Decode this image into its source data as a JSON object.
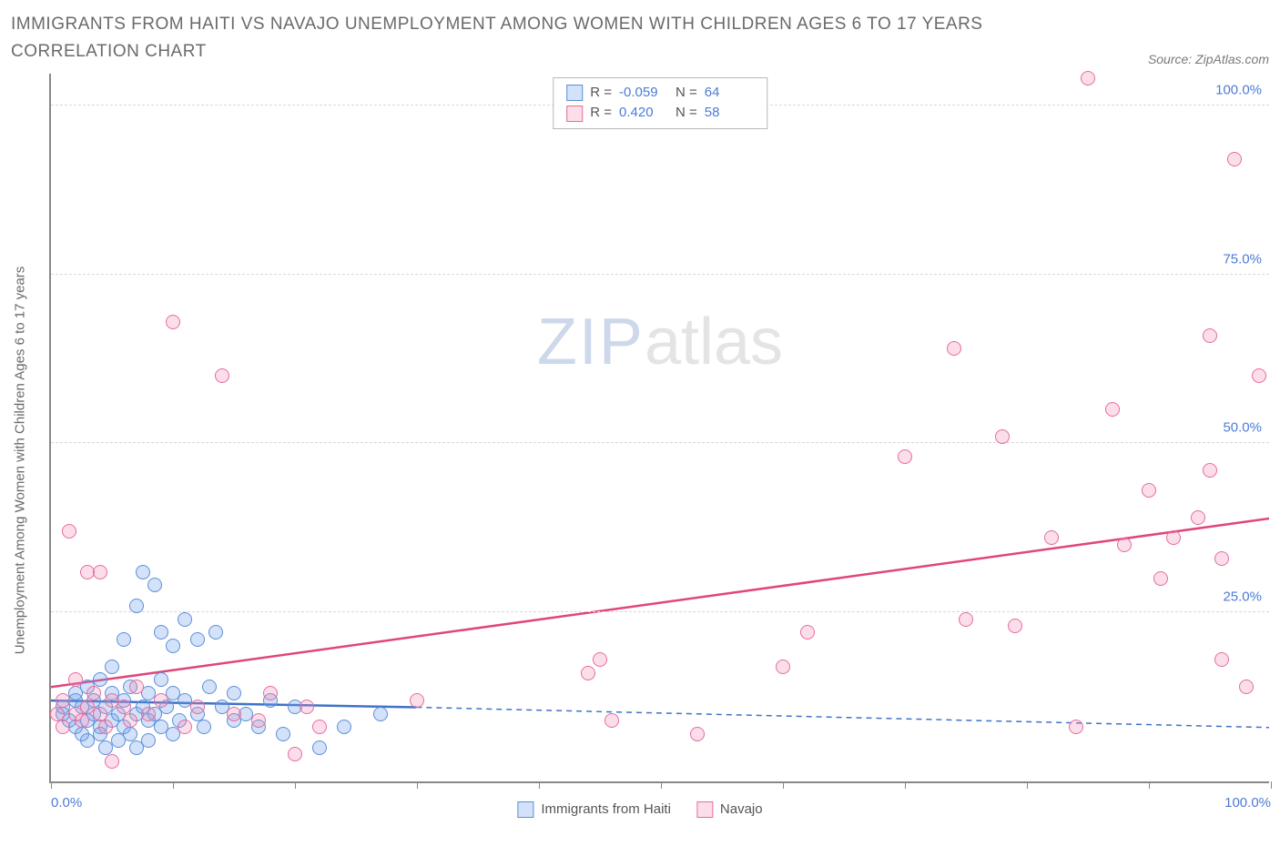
{
  "title": "IMMIGRANTS FROM HAITI VS NAVAJO UNEMPLOYMENT AMONG WOMEN WITH CHILDREN AGES 6 TO 17 YEARS CORRELATION CHART",
  "source": "Source: ZipAtlas.com",
  "ylabel": "Unemployment Among Women with Children Ages 6 to 17 years",
  "watermark_bold": "ZIP",
  "watermark_light": "atlas",
  "chart": {
    "type": "scatter",
    "xlim": [
      0,
      100
    ],
    "ylim": [
      0,
      105
    ],
    "ytick_labels": [
      "25.0%",
      "50.0%",
      "75.0%",
      "100.0%"
    ],
    "ytick_vals": [
      25,
      50,
      75,
      100
    ],
    "xtick_vals": [
      0,
      10,
      20,
      30,
      40,
      50,
      60,
      70,
      80,
      90,
      100
    ],
    "xtick_labels": {
      "0": "0.0%",
      "100": "100.0%"
    },
    "grid_color": "#d8d8d8",
    "axis_color": "#888888",
    "label_color": "#4d7bd6",
    "marker_radius": 8,
    "marker_stroke_width": 1.5,
    "series": [
      {
        "name": "Immigrants from Haiti",
        "fill": "rgba(109,158,235,0.30)",
        "stroke": "#5a8fd8",
        "r_value": "-0.059",
        "n_value": "64",
        "trend": {
          "x1": 0,
          "y1": 12,
          "x2": 30,
          "y2": 11,
          "x2_dash": 100,
          "y2_dash": 8,
          "color": "#3f72c8",
          "width": 2.5
        },
        "points": [
          [
            1,
            10
          ],
          [
            1,
            11
          ],
          [
            1.5,
            9
          ],
          [
            2,
            12
          ],
          [
            2,
            8
          ],
          [
            2,
            13
          ],
          [
            2.5,
            11
          ],
          [
            2.5,
            7
          ],
          [
            3,
            9
          ],
          [
            3,
            14
          ],
          [
            3,
            6
          ],
          [
            3.5,
            10
          ],
          [
            3.5,
            12
          ],
          [
            4,
            8
          ],
          [
            4,
            15
          ],
          [
            4,
            7
          ],
          [
            4.5,
            11
          ],
          [
            4.5,
            5
          ],
          [
            5,
            13
          ],
          [
            5,
            9
          ],
          [
            5,
            17
          ],
          [
            5.5,
            10
          ],
          [
            5.5,
            6
          ],
          [
            6,
            12
          ],
          [
            6,
            8
          ],
          [
            6,
            21
          ],
          [
            6.5,
            14
          ],
          [
            6.5,
            7
          ],
          [
            7,
            10
          ],
          [
            7,
            26
          ],
          [
            7,
            5
          ],
          [
            7.5,
            11
          ],
          [
            7.5,
            31
          ],
          [
            8,
            9
          ],
          [
            8,
            13
          ],
          [
            8,
            6
          ],
          [
            8.5,
            29
          ],
          [
            8.5,
            10
          ],
          [
            9,
            22
          ],
          [
            9,
            8
          ],
          [
            9,
            15
          ],
          [
            9.5,
            11
          ],
          [
            10,
            20
          ],
          [
            10,
            7
          ],
          [
            10,
            13
          ],
          [
            10.5,
            9
          ],
          [
            11,
            24
          ],
          [
            11,
            12
          ],
          [
            12,
            10
          ],
          [
            12,
            21
          ],
          [
            12.5,
            8
          ],
          [
            13,
            14
          ],
          [
            13.5,
            22
          ],
          [
            14,
            11
          ],
          [
            15,
            9
          ],
          [
            15,
            13
          ],
          [
            16,
            10
          ],
          [
            17,
            8
          ],
          [
            18,
            12
          ],
          [
            19,
            7
          ],
          [
            20,
            11
          ],
          [
            22,
            5
          ],
          [
            24,
            8
          ],
          [
            27,
            10
          ]
        ]
      },
      {
        "name": "Navajo",
        "fill": "rgba(242,138,178,0.28)",
        "stroke": "#e76ba0",
        "r_value": "0.420",
        "n_value": "58",
        "trend": {
          "x1": 0,
          "y1": 14,
          "x2": 100,
          "y2": 39,
          "color": "#e0457e",
          "width": 2.5
        },
        "points": [
          [
            0.5,
            10
          ],
          [
            1,
            12
          ],
          [
            1,
            8
          ],
          [
            1.5,
            37
          ],
          [
            2,
            10
          ],
          [
            2,
            15
          ],
          [
            2.5,
            9
          ],
          [
            3,
            11
          ],
          [
            3,
            31
          ],
          [
            3.5,
            13
          ],
          [
            4,
            10
          ],
          [
            4,
            31
          ],
          [
            4.5,
            8
          ],
          [
            5,
            12
          ],
          [
            5,
            3
          ],
          [
            6,
            11
          ],
          [
            6.5,
            9
          ],
          [
            7,
            14
          ],
          [
            8,
            10
          ],
          [
            9,
            12
          ],
          [
            10,
            68
          ],
          [
            11,
            8
          ],
          [
            12,
            11
          ],
          [
            14,
            60
          ],
          [
            15,
            10
          ],
          [
            17,
            9
          ],
          [
            18,
            13
          ],
          [
            20,
            4
          ],
          [
            21,
            11
          ],
          [
            22,
            8
          ],
          [
            30,
            12
          ],
          [
            44,
            16
          ],
          [
            45,
            18
          ],
          [
            46,
            9
          ],
          [
            53,
            7
          ],
          [
            60,
            17
          ],
          [
            62,
            22
          ],
          [
            70,
            48
          ],
          [
            74,
            64
          ],
          [
            75,
            24
          ],
          [
            78,
            51
          ],
          [
            79,
            23
          ],
          [
            82,
            36
          ],
          [
            84,
            8
          ],
          [
            85,
            104
          ],
          [
            87,
            55
          ],
          [
            88,
            35
          ],
          [
            90,
            43
          ],
          [
            91,
            30
          ],
          [
            92,
            36
          ],
          [
            94,
            39
          ],
          [
            95,
            66
          ],
          [
            95,
            46
          ],
          [
            96,
            18
          ],
          [
            96,
            33
          ],
          [
            97,
            92
          ],
          [
            98,
            14
          ],
          [
            99,
            60
          ]
        ]
      }
    ]
  },
  "legend_labels": {
    "r": "R =",
    "n": "N ="
  }
}
